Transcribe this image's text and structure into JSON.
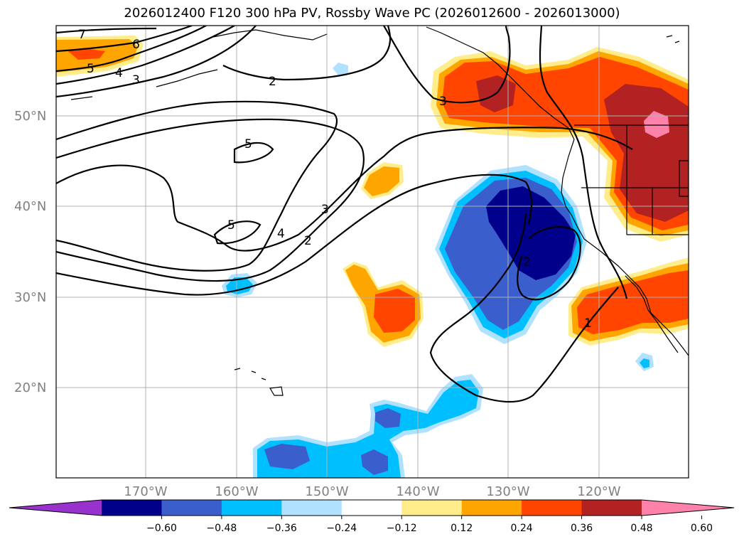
{
  "title": "2026012400 F120 300 hPa PV, Rossby Wave PC (2026012600 - 2026013000)",
  "lat_labels": [
    "50°N",
    "40°N",
    "30°N",
    "20°N"
  ],
  "lon_labels": [
    "170°W",
    "160°W",
    "150°W",
    "140°W",
    "130°W",
    "120°W"
  ],
  "colorbar": {
    "colors": [
      "#9932cc",
      "#00008b",
      "#3a5fcd",
      "#00bfff",
      "#b0e2ff",
      "#ffffff",
      "#ffec8b",
      "#ffa500",
      "#ff4500",
      "#b22222",
      "#ff82ab"
    ],
    "tick_labels": [
      "−0.60",
      "−0.48",
      "−0.36",
      "−0.24",
      "−0.12",
      "0.12",
      "0.24",
      "0.36",
      "0.48",
      "0.60"
    ]
  },
  "contour_labels": [
    "7",
    "6",
    "5",
    "4",
    "3",
    "2",
    "5",
    "5",
    "4",
    "3",
    "2",
    "3",
    "2",
    "1"
  ],
  "colors": {
    "coast": "#000000",
    "grid": "#b0b0b0",
    "contour": "#000000"
  }
}
